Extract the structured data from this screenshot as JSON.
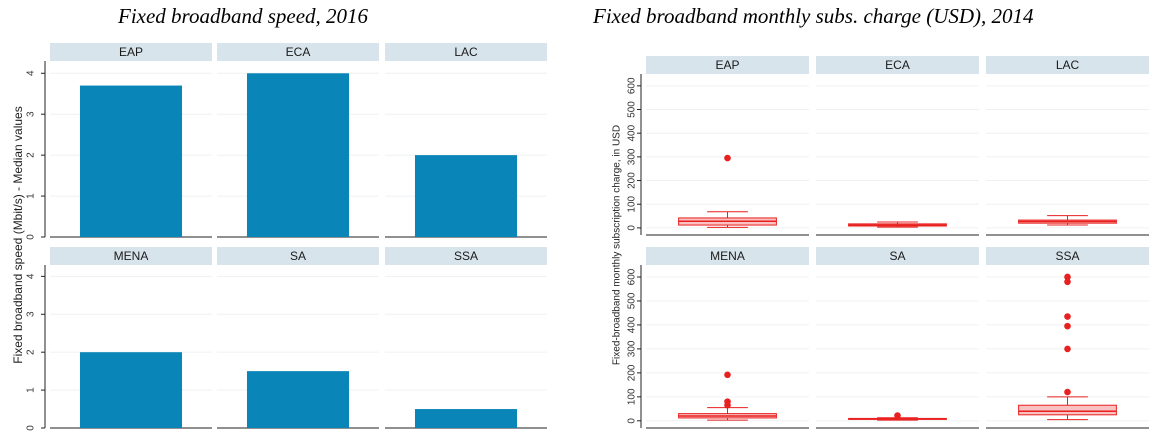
{
  "chart_data": [
    {
      "type": "bar",
      "title": "Fixed broadband speed, 2016",
      "ylabel": "Fixed broadband speed (Mbit/s) - Median values",
      "ylim": [
        0,
        4.3
      ],
      "yticks": [
        "0",
        "1",
        "2",
        "3",
        "4"
      ],
      "grid": true,
      "color": "#0a85b8",
      "panels": [
        {
          "name": "EAP",
          "value": 3.7
        },
        {
          "name": "ECA",
          "value": 4.0
        },
        {
          "name": "LAC",
          "value": 2.0
        },
        {
          "name": "MENA",
          "value": 2.0
        },
        {
          "name": "SA",
          "value": 1.5
        },
        {
          "name": "SSA",
          "value": 0.5
        }
      ]
    },
    {
      "type": "box",
      "title": "Fixed broadband monthly subs. charge (USD), 2014",
      "ylabel": "Fixed-broadband monthly subscription charge, in USD",
      "ylim": [
        -30,
        650
      ],
      "yticks": [
        "0",
        "100",
        "200",
        "300",
        "400",
        "500",
        "600"
      ],
      "grid": true,
      "color": "#e8201f",
      "panels": [
        {
          "name": "EAP",
          "whisker_low": 2,
          "q1": 12,
          "median": 28,
          "q3": 42,
          "whisker_high": 68,
          "outliers": [
            295
          ]
        },
        {
          "name": "ECA",
          "whisker_low": 3,
          "q1": 8,
          "median": 12,
          "q3": 17,
          "whisker_high": 25,
          "outliers": []
        },
        {
          "name": "LAC",
          "whisker_low": 12,
          "q1": 20,
          "median": 27,
          "q3": 33,
          "whisker_high": 52,
          "outliers": []
        },
        {
          "name": "MENA",
          "whisker_low": 3,
          "q1": 12,
          "median": 20,
          "q3": 30,
          "whisker_high": 55,
          "outliers": [
            65,
            80,
            192
          ]
        },
        {
          "name": "SA",
          "whisker_low": 3,
          "q1": 6,
          "median": 8,
          "q3": 10,
          "whisker_high": 13,
          "outliers": [
            22
          ]
        },
        {
          "name": "SSA",
          "whisker_low": 5,
          "q1": 25,
          "median": 40,
          "q3": 65,
          "whisker_high": 100,
          "outliers": [
            120,
            300,
            395,
            435,
            580,
            600
          ]
        }
      ]
    }
  ]
}
